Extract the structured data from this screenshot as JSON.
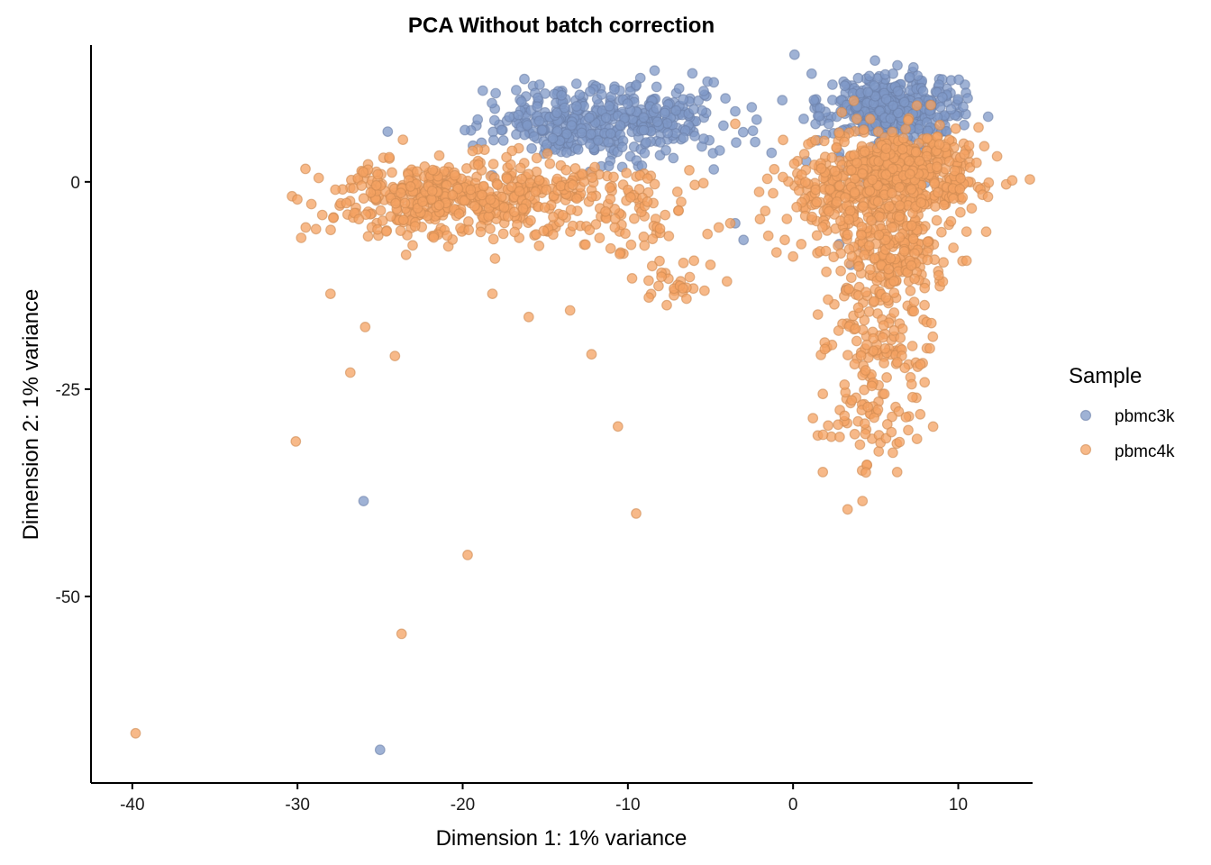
{
  "chart_data": {
    "type": "scatter",
    "title": "PCA Without batch correction",
    "xlabel": "Dimension 1: 1% variance",
    "ylabel": "Dimension 2: 1% variance",
    "xlim": [
      -42.5,
      14.5
    ],
    "ylim": [
      -72.5,
      16.5
    ],
    "x_ticks": [
      -40,
      -30,
      -20,
      -10,
      0,
      10
    ],
    "x_tick_labels": [
      "-40",
      "-30",
      "-20",
      "-10",
      "0",
      "10"
    ],
    "y_ticks": [
      0,
      -25,
      -50
    ],
    "y_tick_labels": [
      "0",
      "-25",
      "-50"
    ],
    "grid": false,
    "legend": {
      "title": "Sample",
      "position": "right"
    },
    "series": [
      {
        "name": "pbmc3k",
        "color": "#7f98c7",
        "clusters": [
          {
            "cx": -12,
            "cy": 7,
            "sx": 3.2,
            "sy": 2.3,
            "n": 380
          },
          {
            "cx": -7.5,
            "cy": 8.5,
            "sx": 1.5,
            "sy": 1.8,
            "n": 60
          },
          {
            "cx": 6,
            "cy": 9,
            "sx": 2,
            "sy": 2,
            "n": 420
          },
          {
            "cx": 5.5,
            "cy": 2,
            "sx": 1.5,
            "sy": 2.2,
            "n": 40
          }
        ],
        "points": [
          {
            "x": -26,
            "y": -38.5
          },
          {
            "x": -25,
            "y": -68.5
          },
          {
            "x": -4.8,
            "y": 12
          },
          {
            "x": -2.5,
            "y": 9
          },
          {
            "x": -2.2,
            "y": 7.5
          },
          {
            "x": -3.5,
            "y": 8.5
          },
          {
            "x": -1.3,
            "y": 3.5
          },
          {
            "x": -4.8,
            "y": 1.5
          },
          {
            "x": -3,
            "y": -7
          },
          {
            "x": -3.5,
            "y": -5
          },
          {
            "x": 0.8,
            "y": 2.5
          },
          {
            "x": 1.5,
            "y": 5
          },
          {
            "x": 4.5,
            "y": -6
          },
          {
            "x": 3.5,
            "y": -10
          },
          {
            "x": 2.8,
            "y": -7.5
          },
          {
            "x": 3.2,
            "y": -13
          },
          {
            "x": 4.2,
            "y": -8
          }
        ]
      },
      {
        "name": "pbmc4k",
        "color": "#f4a261",
        "clusters": [
          {
            "cx": -21,
            "cy": -2,
            "sx": 3.3,
            "sy": 2.4,
            "n": 420
          },
          {
            "cx": -15,
            "cy": -1.5,
            "sx": 2.5,
            "sy": 2.5,
            "n": 110
          },
          {
            "cx": -9.5,
            "cy": -3,
            "sx": 2,
            "sy": 2.6,
            "n": 70
          },
          {
            "cx": -7,
            "cy": -12,
            "sx": 1.2,
            "sy": 1.5,
            "n": 26
          },
          {
            "cx": 2.5,
            "cy": -1.5,
            "sx": 1.8,
            "sy": 2.6,
            "n": 130
          },
          {
            "cx": 6.5,
            "cy": 1,
            "sx": 2.4,
            "sy": 2.8,
            "n": 520
          },
          {
            "cx": 6,
            "cy": -9,
            "sx": 1.7,
            "sy": 3.2,
            "n": 230
          },
          {
            "cx": 5.5,
            "cy": -19,
            "sx": 1.5,
            "sy": 2.8,
            "n": 90
          },
          {
            "cx": 5,
            "cy": -28,
            "sx": 1.5,
            "sy": 3.2,
            "n": 70
          }
        ],
        "points": [
          {
            "x": -39.8,
            "y": -66.5
          },
          {
            "x": -23.7,
            "y": -54.5
          },
          {
            "x": -19.7,
            "y": -45
          },
          {
            "x": -30.1,
            "y": -31.3
          },
          {
            "x": -26.8,
            "y": -23
          },
          {
            "x": -24.1,
            "y": -21
          },
          {
            "x": -25.9,
            "y": -17.5
          },
          {
            "x": -28,
            "y": -13.5
          },
          {
            "x": -9.5,
            "y": -40
          },
          {
            "x": -10.6,
            "y": -29.5
          },
          {
            "x": -12.2,
            "y": -20.8
          },
          {
            "x": -16,
            "y": -16.3
          },
          {
            "x": -13.5,
            "y": -15.5
          },
          {
            "x": -18.2,
            "y": -13.5
          },
          {
            "x": -29.5,
            "y": -5.5
          },
          {
            "x": -28.5,
            "y": -4
          },
          {
            "x": 11.8,
            "y": -1.8
          },
          {
            "x": 10.5,
            "y": -9.5
          },
          {
            "x": 10.5,
            "y": -6
          },
          {
            "x": 1.5,
            "y": -16
          },
          {
            "x": 1.8,
            "y": -35
          },
          {
            "x": 3.3,
            "y": -39.5
          },
          {
            "x": 4.2,
            "y": -38.5
          },
          {
            "x": 6.3,
            "y": -35
          },
          {
            "x": 7.5,
            "y": -31
          },
          {
            "x": 1.2,
            "y": -28.5
          },
          {
            "x": -3.5,
            "y": 7
          },
          {
            "x": -1.5,
            "y": -6.5
          },
          {
            "x": -0.5,
            "y": -7
          },
          {
            "x": 0.5,
            "y": -7.5
          },
          {
            "x": -5,
            "y": -10
          },
          {
            "x": -4,
            "y": -12
          },
          {
            "x": -4.5,
            "y": -5.5
          },
          {
            "x": -3.8,
            "y": -5
          },
          {
            "x": -6,
            "y": -9.5
          },
          {
            "x": -2,
            "y": -4.5
          },
          {
            "x": -1,
            "y": -8.5
          },
          {
            "x": 0,
            "y": -9
          }
        ]
      }
    ]
  }
}
